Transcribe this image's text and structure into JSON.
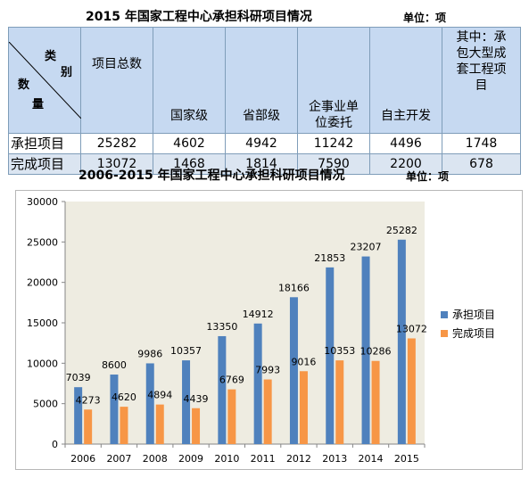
{
  "table": {
    "title": "2015 年国家工程中心承担科研项目情况",
    "unit": "单位：项",
    "corner": {
      "top": "类",
      "mid": "别",
      "left": "数",
      "bottom": "量"
    },
    "headers": [
      "项目总数",
      "国家级",
      "省部级",
      "企事业单位委托",
      "自主开发",
      "其中：承包大型成套工程项目"
    ],
    "header_lines": {
      "企事业单位委托": [
        "企事业单",
        "位委托"
      ],
      "其中：承包大型成套工程项目": [
        "其中：承",
        "包大型成",
        "套工程项",
        "目"
      ]
    },
    "rows": [
      {
        "label": "承担项目",
        "values": [
          "25282",
          "4602",
          "4942",
          "11242",
          "4496",
          "1748"
        ]
      },
      {
        "label": "完成项目",
        "values": [
          "13072",
          "1468",
          "1814",
          "7590",
          "2200",
          "678"
        ]
      }
    ]
  },
  "chart_header": {
    "title": "2006-2015 年国家工程中心承担科研项目情况",
    "unit": "单位：项"
  },
  "chart_data": {
    "type": "bar",
    "title": "2006-2015 年国家工程中心承担科研项目情况",
    "categories": [
      "2006",
      "2007",
      "2008",
      "2009",
      "2010",
      "2011",
      "2012",
      "2013",
      "2014",
      "2015"
    ],
    "series": [
      {
        "name": "承担项目",
        "color": "#4f81bd",
        "values": [
          7039,
          8600,
          9986,
          10357,
          13350,
          14912,
          18166,
          21853,
          23207,
          25282
        ]
      },
      {
        "name": "完成项目",
        "color": "#f79646",
        "values": [
          4273,
          4620,
          4894,
          4439,
          6769,
          7993,
          9016,
          10353,
          10286,
          13072
        ]
      }
    ],
    "ylim": [
      0,
      30000
    ],
    "yticks": [
      0,
      5000,
      10000,
      15000,
      20000,
      25000,
      30000
    ],
    "grid": false,
    "legend": "right",
    "plot_background": "#eeece1"
  }
}
